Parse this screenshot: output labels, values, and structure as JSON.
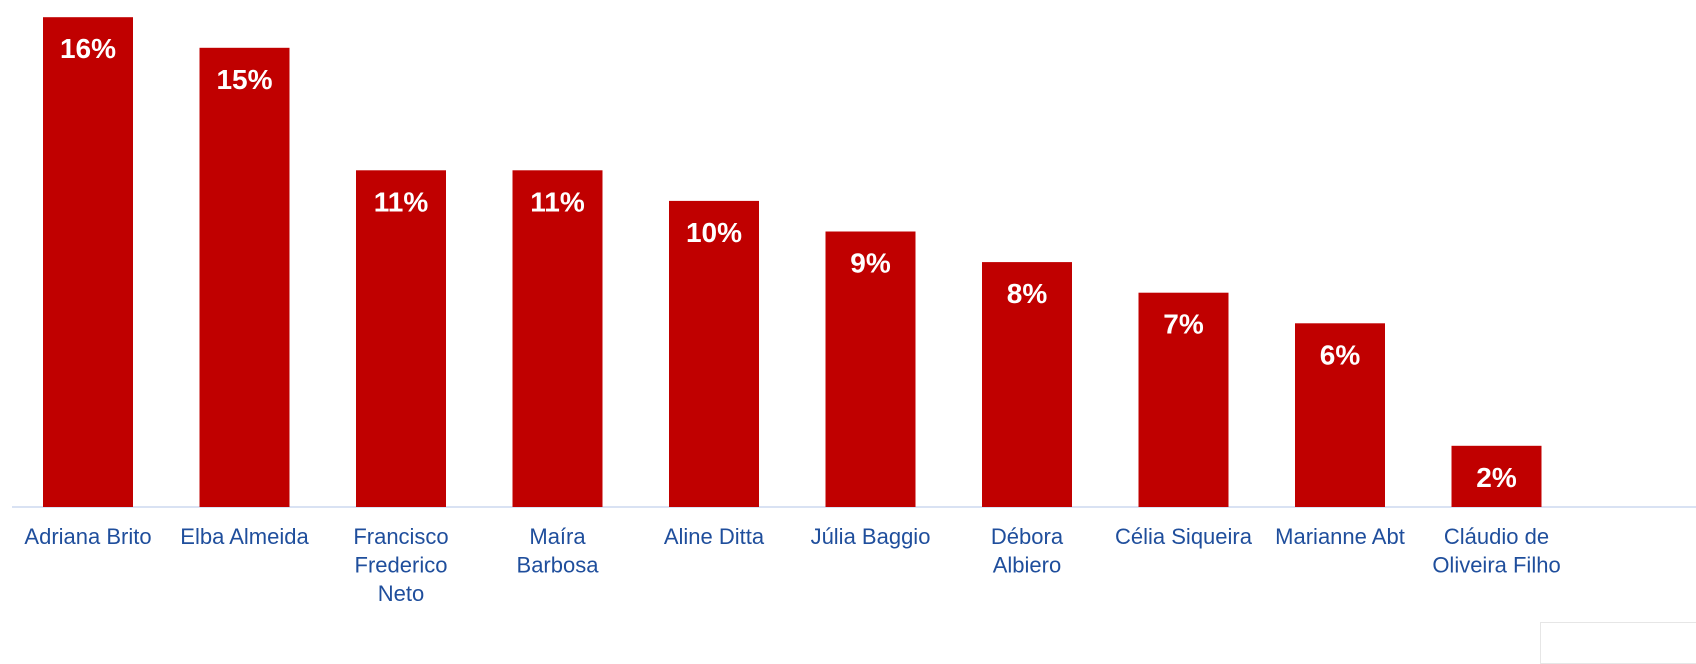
{
  "chart_data": {
    "type": "bar",
    "categories": [
      "Adriana Brito",
      "Elba Almeida",
      "Francisco Frederico Neto",
      "Maíra Barbosa",
      "Aline Ditta",
      "Júlia Baggio",
      "Débora Albiero",
      "Célia Siqueira",
      "Marianne Abt",
      "Cláudio de Oliveira Filho"
    ],
    "category_lines": [
      [
        "Adriana Brito"
      ],
      [
        "Elba Almeida"
      ],
      [
        "Francisco",
        "Frederico",
        "Neto"
      ],
      [
        "Maíra",
        "Barbosa"
      ],
      [
        "Aline Ditta"
      ],
      [
        "Júlia Baggio"
      ],
      [
        "Débora",
        "Albiero"
      ],
      [
        "Célia Siqueira"
      ],
      [
        "Marianne Abt"
      ],
      [
        "Cláudio de",
        "Oliveira Filho"
      ]
    ],
    "values": [
      16,
      15,
      11,
      11,
      10,
      9,
      8,
      7,
      6,
      2
    ],
    "data_labels": [
      "16%",
      "15%",
      "11%",
      "11%",
      "10%",
      "9%",
      "8%",
      "7%",
      "6%",
      "2%"
    ],
    "ylim": [
      0,
      16.3
    ],
    "grid": false,
    "legend": "none",
    "title": "",
    "xlabel": "",
    "ylabel": "",
    "colors": {
      "bar": "#c00000",
      "bar_label": "#ffffff",
      "category_label": "#1f4e9c",
      "axis_line": "#d9e2f3"
    }
  }
}
